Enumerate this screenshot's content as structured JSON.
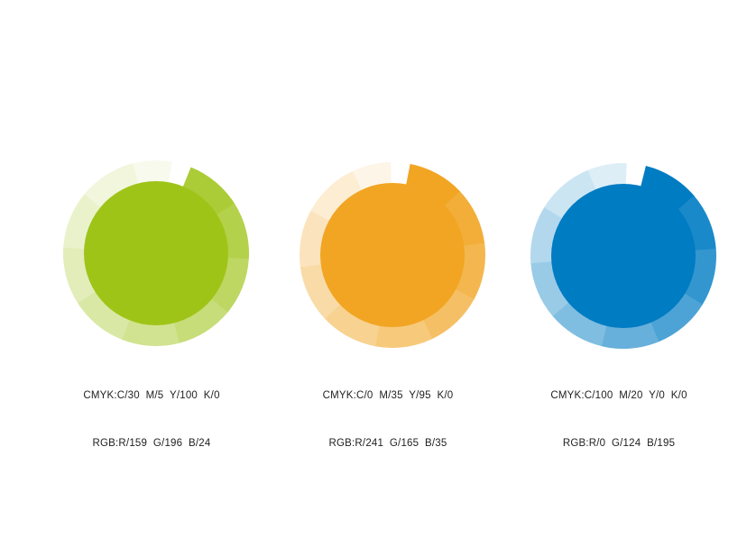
{
  "page": {
    "background": "#ffffff",
    "text_color": "#222222"
  },
  "ring": {
    "segments": 10,
    "segment_deg": 36,
    "gap_deg": 12,
    "outer_radius": 103,
    "core_radius": 80
  },
  "swatches": [
    {
      "id": "green",
      "color": "#9FC418",
      "cmyk_label": "CMYK:C/30  M/5  Y/100  K/0",
      "rgb_label": "RGB:R/159  G/196  B/24",
      "junction_deg": 22,
      "ring_opacities": [
        0.87,
        0.78,
        0.68,
        0.58,
        0.48,
        0.39,
        0.3,
        0.22,
        0.15,
        0.08
      ]
    },
    {
      "id": "orange",
      "color": "#F1A523",
      "cmyk_label": "CMYK:C/0  M/35  Y/95  K/0",
      "rgb_label": "RGB:R/241  G/165  B/35",
      "junction_deg": 11,
      "ring_opacities": [
        1.0,
        0.9,
        0.8,
        0.7,
        0.6,
        0.5,
        0.4,
        0.3,
        0.2,
        0.11
      ]
    },
    {
      "id": "blue",
      "color": "#007CC3",
      "cmyk_label": "CMYK:C/100  M/20  Y/0  K/0",
      "rgb_label": "RGB:R/0  G/124  B/195",
      "junction_deg": 14,
      "ring_opacities": [
        1.0,
        0.9,
        0.8,
        0.7,
        0.6,
        0.5,
        0.4,
        0.3,
        0.2,
        0.13
      ]
    }
  ]
}
